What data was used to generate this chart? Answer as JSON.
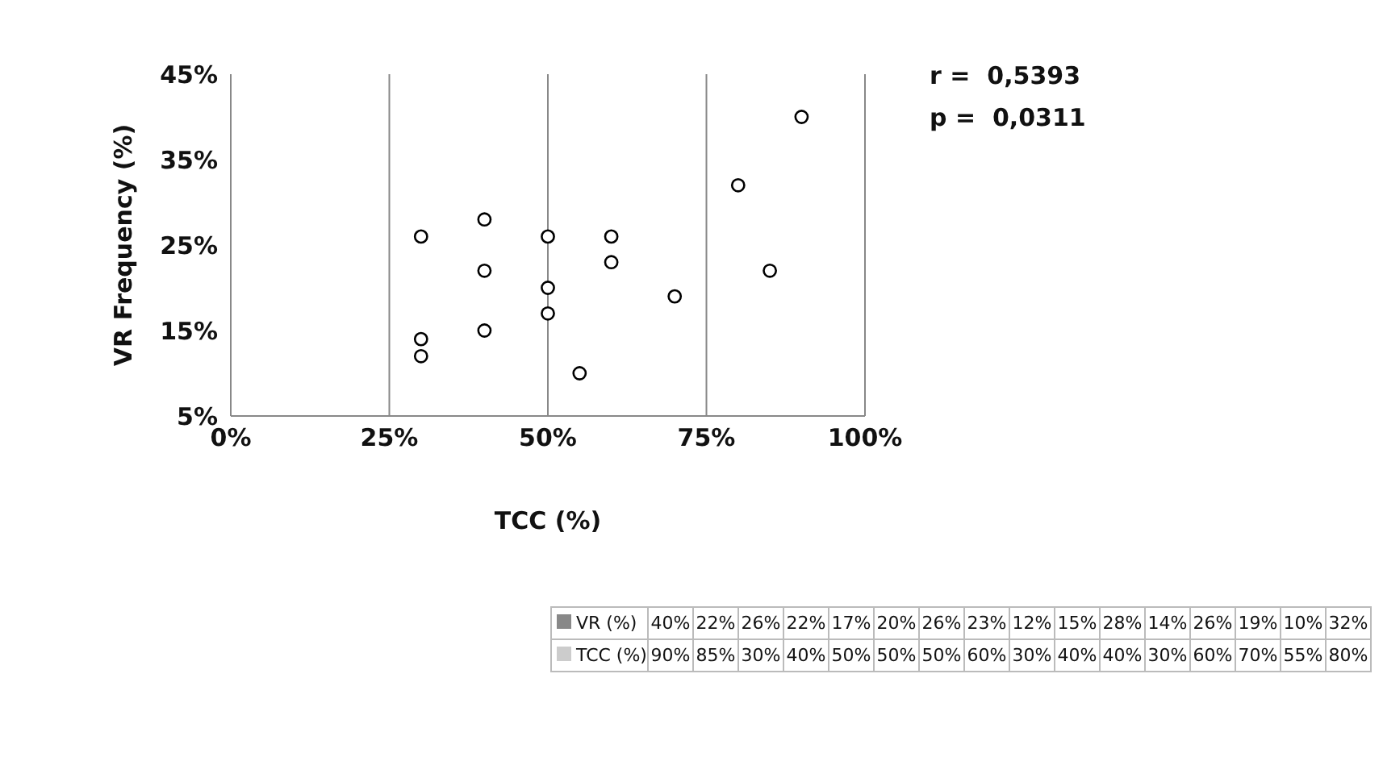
{
  "chart_data": {
    "type": "scatter",
    "xlabel": "TCC (%)",
    "ylabel": "VR Frequency (%)",
    "x": [
      90,
      85,
      30,
      40,
      50,
      50,
      50,
      60,
      30,
      40,
      40,
      30,
      60,
      70,
      55,
      80
    ],
    "series": [
      {
        "name": "VR (%)",
        "color": "#000000",
        "values": [
          40,
          22,
          26,
          22,
          17,
          20,
          26,
          23,
          12,
          15,
          28,
          14,
          26,
          19,
          10,
          32
        ]
      }
    ],
    "xlim": [
      0,
      100
    ],
    "ylim": [
      5,
      45
    ],
    "xticks": [
      {
        "value": 0,
        "label": "0%"
      },
      {
        "value": 25,
        "label": "25%"
      },
      {
        "value": 50,
        "label": "50%"
      },
      {
        "value": 75,
        "label": "75%"
      },
      {
        "value": 100,
        "label": "100%"
      }
    ],
    "yticks": [
      {
        "value": 5,
        "label": "5%"
      },
      {
        "value": 15,
        "label": "15%"
      },
      {
        "value": 25,
        "label": "25%"
      },
      {
        "value": 35,
        "label": "35%"
      },
      {
        "value": 45,
        "label": "45%"
      }
    ],
    "grid": "x",
    "marker": "circle",
    "legend": "bottom",
    "annotations": [
      "r =  0,5393",
      "p =  0,0311",
      "40%",
      "22%",
      "26%",
      "22%",
      "17%",
      "20%",
      "26%",
      "23%",
      "12%",
      "15%",
      "28%",
      "14%",
      "26%",
      "19%",
      "10%",
      "32%",
      "TCC (%)",
      "90%",
      "85%",
      "30%",
      "40%",
      "50%",
      "50%",
      "50%",
      "60%",
      "30%",
      "40%",
      "40%",
      "30%",
      "60%",
      "70%",
      "55%",
      "80%"
    ]
  }
}
